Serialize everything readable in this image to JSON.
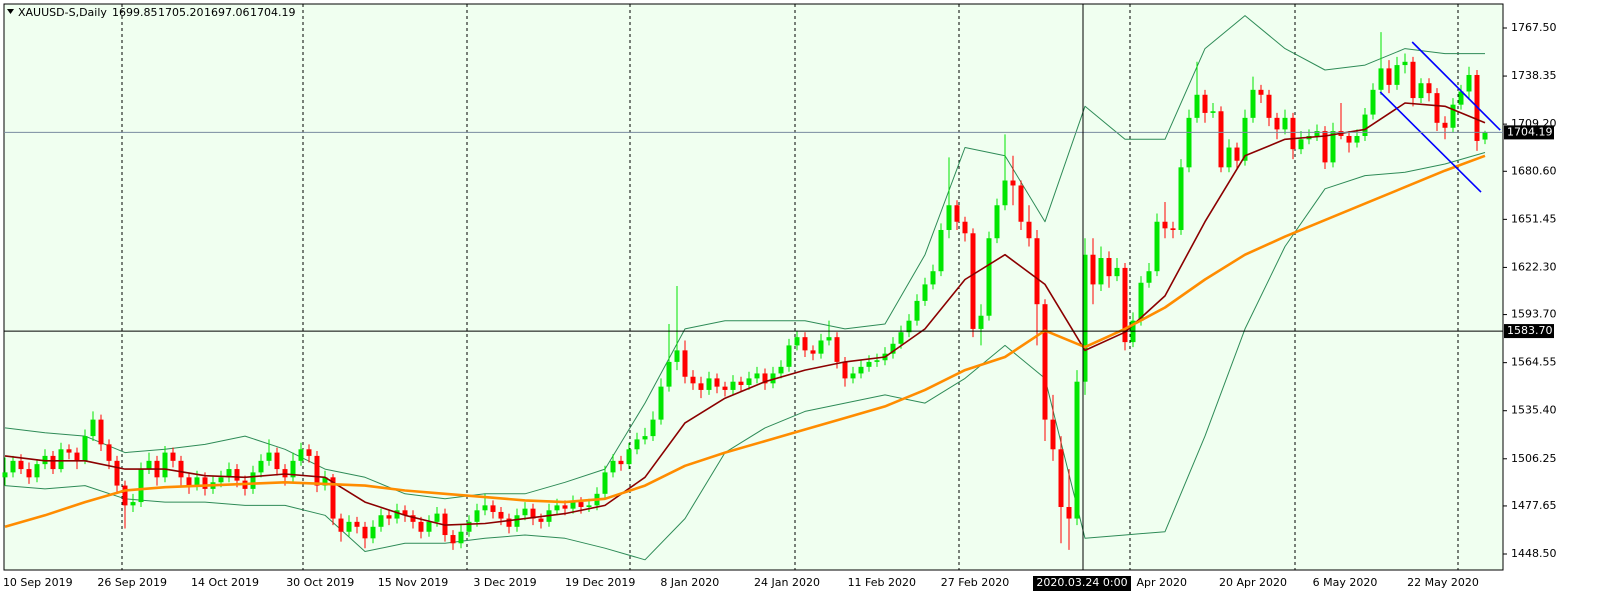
{
  "header": {
    "symbol": "XAUUSD-S,Daily",
    "ohlc": [
      1699.85,
      {
        "value": 1705.2,
        "label": "1705.20"
      },
      1697.06,
      1704.19
    ]
  },
  "chart_data": {
    "type": "candlestick",
    "up_color": "#00e600",
    "down_color": "#ff0000",
    "xlim": [
      -0.125,
      187.25
    ],
    "ylim": [
      1438.8,
      1782.05
    ],
    "xticks": [
      {
        "value": 4.1,
        "label": "10 Sep 2019"
      },
      {
        "value": 15.9,
        "label": "26 Sep 2019"
      },
      {
        "value": 27.5,
        "label": "14 Oct 2019"
      },
      {
        "value": 39.4,
        "label": "30 Oct 2019"
      },
      {
        "value": 51,
        "label": "15 Nov 2019"
      },
      {
        "value": 62.5,
        "label": "3 Dec 2019"
      },
      {
        "value": 74.4,
        "label": "19 Dec 2019"
      },
      {
        "value": 85.6,
        "label": "8 Jan 2020"
      },
      {
        "value": 97.75,
        "label": "24 Jan 2020"
      },
      {
        "value": 109.6,
        "label": "11 Feb 2020"
      },
      {
        "value": 121.25,
        "label": "27 Feb 2020"
      },
      {
        "value": 144.6,
        "label": "Apr 2020"
      },
      {
        "value": 156,
        "label": "20 Apr 2020"
      },
      {
        "value": 167.5,
        "label": "6 May 2020"
      },
      {
        "value": 179.75,
        "label": "22 May 2020"
      }
    ],
    "xgrid": [
      14.625,
      37.25,
      57.75,
      78.125,
      98.75,
      119.25,
      140.625,
      161.25,
      181.625
    ],
    "yticks": [
      {
        "value": 1767.5,
        "label": "1767.50"
      },
      1738.35,
      {
        "value": 1709.2,
        "label": "1709.20"
      },
      {
        "value": 1680.6,
        "label": "1680.60"
      },
      1651.45,
      {
        "value": 1622.3,
        "label": "1622.30"
      },
      {
        "value": 1593.7,
        "label": "1593.70"
      },
      1564.55,
      {
        "value": 1535.4,
        "label": "1535.40"
      },
      1506.25,
      1477.65,
      {
        "value": 1448.5,
        "label": "1448.50"
      }
    ],
    "candles": [
      [
        1495,
        1507,
        1490,
        1498
      ],
      [
        1498,
        1508,
        1495,
        1505
      ],
      [
        1505,
        1509,
        1497,
        1500
      ],
      [
        1500,
        1504,
        1491,
        1495
      ],
      [
        1495,
        1506,
        1492,
        1503
      ],
      [
        1503,
        1512,
        1500,
        1508
      ],
      [
        1508,
        1511,
        1497,
        1500
      ],
      [
        1500,
        1516,
        1498,
        1512
      ],
      [
        1512,
        1515,
        1506,
        1510
      ],
      [
        1510,
        1513,
        1500,
        1505
      ],
      [
        1505,
        1524,
        1503,
        1520
      ],
      [
        1520,
        1535,
        1517,
        1530
      ],
      [
        1530,
        1533,
        1511,
        1515
      ],
      [
        1515,
        1518,
        1500,
        1505
      ],
      [
        1505,
        1508,
        1485,
        1490
      ],
      [
        1490,
        1493,
        1464,
        1478
      ],
      [
        1478,
        1485,
        1474,
        1480
      ],
      [
        1480,
        1504,
        1477,
        1500
      ],
      [
        1500,
        1510,
        1497,
        1505
      ],
      [
        1505,
        1508,
        1490,
        1495
      ],
      [
        1495,
        1514,
        1492,
        1510
      ],
      [
        1510,
        1513,
        1501,
        1505
      ],
      [
        1505,
        1508,
        1490,
        1495
      ],
      [
        1495,
        1498,
        1485,
        1490
      ],
      [
        1490,
        1499,
        1487,
        1495
      ],
      [
        1495,
        1498,
        1484,
        1488
      ],
      [
        1488,
        1496,
        1485,
        1492
      ],
      [
        1492,
        1499,
        1489,
        1495
      ],
      [
        1495,
        1504,
        1492,
        1500
      ],
      [
        1500,
        1503,
        1489,
        1493
      ],
      [
        1493,
        1496,
        1484,
        1488
      ],
      [
        1488,
        1502,
        1485,
        1498
      ],
      [
        1498,
        1509,
        1495,
        1505
      ],
      [
        1505,
        1518,
        1502,
        1510
      ],
      [
        1510,
        1513,
        1496,
        1500
      ],
      [
        1500,
        1503,
        1490,
        1495
      ],
      [
        1495,
        1510,
        1492,
        1505
      ],
      [
        1505,
        1516,
        1502,
        1512
      ],
      [
        1512,
        1515,
        1504,
        1508
      ],
      [
        1508,
        1511,
        1486,
        1490
      ],
      [
        1490,
        1499,
        1487,
        1495
      ],
      [
        1495,
        1497,
        1466,
        1470
      ],
      [
        1470,
        1473,
        1456,
        1462
      ],
      [
        1462,
        1472,
        1459,
        1468
      ],
      [
        1468,
        1471,
        1461,
        1465
      ],
      [
        1465,
        1468,
        1452,
        1458
      ],
      [
        1458,
        1469,
        1455,
        1465
      ],
      [
        1465,
        1476,
        1462,
        1472
      ],
      [
        1472,
        1475,
        1466,
        1470
      ],
      [
        1470,
        1479,
        1467,
        1475
      ],
      [
        1475,
        1478,
        1468,
        1472
      ],
      [
        1472,
        1475,
        1464,
        1468
      ],
      [
        1468,
        1471,
        1458,
        1462
      ],
      [
        1462,
        1472,
        1459,
        1468
      ],
      [
        1468,
        1477,
        1465,
        1473
      ],
      [
        1473,
        1476,
        1456,
        1460
      ],
      [
        1460,
        1463,
        1451,
        1455
      ],
      [
        1455,
        1466,
        1452,
        1462
      ],
      [
        1462,
        1472,
        1459,
        1468
      ],
      [
        1468,
        1479,
        1465,
        1475
      ],
      [
        1475,
        1485,
        1472,
        1478
      ],
      [
        1478,
        1481,
        1470,
        1474
      ],
      [
        1474,
        1477,
        1466,
        1470
      ],
      [
        1470,
        1473,
        1461,
        1465
      ],
      [
        1465,
        1476,
        1462,
        1472
      ],
      [
        1472,
        1480,
        1469,
        1476
      ],
      [
        1476,
        1479,
        1466,
        1470
      ],
      [
        1470,
        1473,
        1464,
        1468
      ],
      [
        1468,
        1479,
        1465,
        1475
      ],
      [
        1475,
        1482,
        1472,
        1478
      ],
      [
        1478,
        1481,
        1472,
        1476
      ],
      [
        1476,
        1484,
        1473,
        1480
      ],
      [
        1480,
        1483,
        1473,
        1477
      ],
      [
        1477,
        1482,
        1474,
        1478
      ],
      [
        1478,
        1489,
        1475,
        1485
      ],
      [
        1485,
        1502,
        1482,
        1498
      ],
      [
        1498,
        1509,
        1495,
        1505
      ],
      [
        1505,
        1508,
        1499,
        1503
      ],
      [
        1503,
        1516,
        1500,
        1512
      ],
      [
        1512,
        1522,
        1509,
        1518
      ],
      [
        1518,
        1525,
        1515,
        1520
      ],
      [
        1520,
        1535,
        1517,
        1530
      ],
      [
        1530,
        1555,
        1527,
        1550
      ],
      [
        1550,
        1588,
        1547,
        1565
      ],
      [
        1565,
        1611,
        1560,
        1572
      ],
      [
        1572,
        1578,
        1552,
        1556
      ],
      [
        1556,
        1560,
        1548,
        1552
      ],
      [
        1552,
        1556,
        1543,
        1548
      ],
      [
        1548,
        1559,
        1545,
        1555
      ],
      [
        1555,
        1558,
        1546,
        1550
      ],
      [
        1550,
        1553,
        1544,
        1548
      ],
      [
        1548,
        1557,
        1545,
        1553
      ],
      [
        1553,
        1556,
        1547,
        1551
      ],
      [
        1551,
        1559,
        1548,
        1555
      ],
      [
        1555,
        1562,
        1552,
        1558
      ],
      [
        1558,
        1561,
        1548,
        1552
      ],
      [
        1552,
        1562,
        1549,
        1558
      ],
      [
        1558,
        1566,
        1555,
        1562
      ],
      [
        1562,
        1579,
        1559,
        1575
      ],
      [
        1575,
        1584,
        1572,
        1580
      ],
      [
        1580,
        1583,
        1568,
        1572
      ],
      [
        1572,
        1575,
        1566,
        1570
      ],
      [
        1570,
        1582,
        1567,
        1578
      ],
      [
        1578,
        1590,
        1575,
        1580
      ],
      [
        1580,
        1583,
        1561,
        1565
      ],
      [
        1565,
        1568,
        1550,
        1555
      ],
      [
        1555,
        1562,
        1552,
        1558
      ],
      [
        1558,
        1566,
        1555,
        1562
      ],
      [
        1562,
        1569,
        1559,
        1565
      ],
      [
        1565,
        1570,
        1562,
        1566
      ],
      [
        1566,
        1574,
        1563,
        1570
      ],
      [
        1570,
        1580,
        1567,
        1576
      ],
      [
        1576,
        1587,
        1573,
        1583
      ],
      [
        1583,
        1594,
        1580,
        1590
      ],
      [
        1590,
        1606,
        1587,
        1602
      ],
      [
        1602,
        1616,
        1599,
        1612
      ],
      [
        1612,
        1624,
        1609,
        1620
      ],
      [
        1620,
        1649,
        1617,
        1645
      ],
      [
        1645,
        1689,
        1640,
        1660
      ],
      [
        1660,
        1663,
        1645,
        1650
      ],
      [
        1650,
        1653,
        1638,
        1643
      ],
      [
        1643,
        1646,
        1580,
        1585
      ],
      [
        1585,
        1600,
        1575,
        1593
      ],
      [
        1593,
        1644,
        1590,
        1640
      ],
      [
        1640,
        1664,
        1637,
        1660
      ],
      [
        1660,
        1703,
        1657,
        1675
      ],
      [
        1675,
        1690,
        1660,
        1672
      ],
      [
        1672,
        1675,
        1645,
        1650
      ],
      [
        1650,
        1660,
        1635,
        1640
      ],
      [
        1640,
        1645,
        1575,
        1600
      ],
      [
        1600,
        1603,
        1517,
        1530
      ],
      [
        1530,
        1545,
        1505,
        1512
      ],
      [
        1512,
        1520,
        1455,
        1477
      ],
      [
        1477,
        1500,
        1451,
        1470
      ],
      [
        1470,
        1560,
        1466,
        1553
      ],
      [
        1553,
        1640,
        1545,
        1630
      ],
      [
        1630,
        1640,
        1600,
        1612
      ],
      [
        1612,
        1635,
        1608,
        1628
      ],
      [
        1628,
        1632,
        1610,
        1617
      ],
      [
        1617,
        1628,
        1614,
        1622
      ],
      [
        1622,
        1625,
        1572,
        1577
      ],
      [
        1577,
        1595,
        1574,
        1590
      ],
      [
        1590,
        1617,
        1587,
        1613
      ],
      [
        1613,
        1625,
        1610,
        1620
      ],
      [
        1620,
        1655,
        1617,
        1650
      ],
      [
        1650,
        1662,
        1640,
        1646
      ],
      [
        1646,
        1650,
        1640,
        1645
      ],
      [
        1645,
        1688,
        1642,
        1683
      ],
      [
        1683,
        1718,
        1680,
        1713
      ],
      [
        1713,
        1747,
        1710,
        1727
      ],
      [
        1727,
        1730,
        1710,
        1716
      ],
      [
        1716,
        1722,
        1713,
        1717
      ],
      [
        1717,
        1720,
        1680,
        1683
      ],
      [
        1683,
        1700,
        1680,
        1695
      ],
      [
        1695,
        1698,
        1682,
        1687
      ],
      [
        1687,
        1718,
        1684,
        1713
      ],
      [
        1713,
        1738,
        1710,
        1730
      ],
      [
        1730,
        1733,
        1722,
        1727
      ],
      [
        1727,
        1730,
        1708,
        1713
      ],
      [
        1713,
        1716,
        1700,
        1706
      ],
      [
        1706,
        1718,
        1703,
        1713
      ],
      [
        1713,
        1716,
        1688,
        1694
      ],
      [
        1694,
        1705,
        1691,
        1700
      ],
      [
        1700,
        1706,
        1697,
        1702
      ],
      [
        1702,
        1709,
        1699,
        1705
      ],
      [
        1705,
        1708,
        1682,
        1686
      ],
      [
        1686,
        1710,
        1683,
        1705
      ],
      [
        1705,
        1722,
        1700,
        1702
      ],
      [
        1702,
        1705,
        1692,
        1698
      ],
      [
        1698,
        1706,
        1695,
        1702
      ],
      [
        1702,
        1719,
        1699,
        1715
      ],
      [
        1715,
        1734,
        1712,
        1730
      ],
      [
        1730,
        1765,
        1727,
        1743
      ],
      [
        1743,
        1748,
        1728,
        1733
      ],
      [
        1733,
        1750,
        1730,
        1745
      ],
      [
        1745,
        1752,
        1740,
        1747
      ],
      [
        1747,
        1750,
        1720,
        1725
      ],
      [
        1725,
        1737,
        1722,
        1734
      ],
      [
        1734,
        1737,
        1723,
        1728
      ],
      [
        1728,
        1731,
        1705,
        1710
      ],
      [
        1710,
        1714,
        1700,
        1707
      ],
      [
        1707,
        1725,
        1704,
        1721
      ],
      [
        1721,
        1733,
        1718,
        1729
      ],
      [
        1729,
        1744,
        1724,
        1739
      ],
      [
        1739,
        1742,
        1693,
        1699
      ],
      [
        1699.85,
        1705.2,
        1697.06,
        1704.19
      ]
    ],
    "lines": {
      "x": [
        0,
        5,
        10,
        15,
        20,
        25,
        30,
        35,
        40,
        45,
        50,
        55,
        60,
        65,
        70,
        75,
        80,
        85,
        90,
        95,
        100,
        105,
        110,
        115,
        120,
        125,
        130,
        135,
        140,
        145,
        150,
        155,
        160,
        165,
        170,
        175,
        180,
        185
      ],
      "series": [
        {
          "color": "#2e8b57",
          "width": 1,
          "values": [
            1525,
            1522,
            1520,
            1510,
            1512,
            1515,
            1520,
            1512,
            1500,
            1495,
            1485,
            1482,
            1485,
            1485,
            1492,
            1500,
            1540,
            1585,
            1590,
            1590,
            1590,
            1585,
            1588,
            1630,
            1695,
            1690,
            1650,
            1720,
            1700,
            1700,
            1755,
            1775,
            1755,
            1742,
            1745,
            1755,
            1752,
            1752
          ]
        },
        {
          "color": "#2e8b57",
          "width": 1,
          "values": [
            1490,
            1488,
            1490,
            1482,
            1480,
            1480,
            1478,
            1478,
            1472,
            1450,
            1455,
            1455,
            1458,
            1460,
            1458,
            1452,
            1445,
            1470,
            1510,
            1525,
            1535,
            1540,
            1545,
            1540,
            1555,
            1575,
            1555,
            1458,
            1460,
            1462,
            1520,
            1585,
            1635,
            1670,
            1678,
            1680,
            1685,
            1692
          ]
        },
        {
          "color": "#8b0000",
          "width": 1.6,
          "values": [
            1508,
            1505,
            1505,
            1500,
            1500,
            1496,
            1495,
            1497,
            1495,
            1480,
            1472,
            1466,
            1467,
            1470,
            1473,
            1478,
            1495,
            1528,
            1543,
            1553,
            1560,
            1565,
            1568,
            1585,
            1615,
            1630,
            1612,
            1572,
            1583,
            1605,
            1650,
            1690,
            1700,
            1702,
            1706,
            1722,
            1720,
            1710
          ]
        },
        {
          "color": "#ff8c00",
          "width": 2.6,
          "values": [
            1465,
            1472,
            1480,
            1487,
            1489,
            1490,
            1491,
            1492,
            1491,
            1490,
            1487,
            1485,
            1483,
            1481,
            1480,
            1482,
            1490,
            1502,
            1510,
            1517,
            1524,
            1531,
            1538,
            1548,
            1560,
            1568,
            1584,
            1574,
            1585,
            1598,
            1615,
            1630,
            1641,
            1651,
            1661,
            1671,
            1681,
            1690
          ]
        }
      ]
    },
    "trendlines": [
      {
        "color": "#0000ff",
        "x": [
          175.9,
          186.9
        ],
        "y": [
          1759,
          1705.6
        ]
      },
      {
        "color": "#0000ff",
        "x": [
          171.9,
          184.5
        ],
        "y": [
          1728.7,
          1668
        ]
      }
    ],
    "last_price": 1704.19,
    "crosshair": {
      "x": 134.75,
      "label": "2020.03.24 0:00",
      "y": {
        "value": 1583.7,
        "label": "1583.70"
      }
    }
  }
}
